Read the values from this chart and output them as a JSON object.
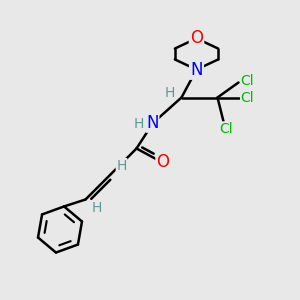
{
  "bg_color": "#e8e8e8",
  "atom_colors": {
    "C": "#000000",
    "N": "#0000ff",
    "O": "#ff0000",
    "Cl": "#00bb00",
    "H": "#5a9a9a"
  },
  "bond_color": "#000000",
  "bond_width": 1.8,
  "figsize": [
    3.0,
    3.0
  ],
  "dpi": 100
}
